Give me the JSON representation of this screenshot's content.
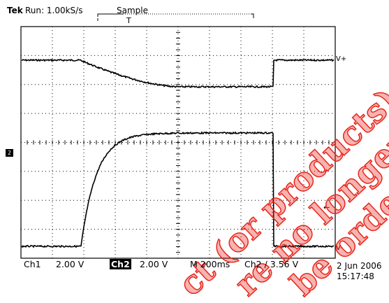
{
  "header": {
    "brand": "Tek",
    "run_state": "Run: 1.00kS/s",
    "acq_mode": "Sample",
    "trigger_bracket_label": "T"
  },
  "traces": {
    "upper_label": "V+",
    "lower_label": "V-"
  },
  "markers": {
    "ground_marker": "2",
    "arrow": "←"
  },
  "status": {
    "ch1_label": "Ch1",
    "ch1_scale": "2.00 V",
    "ch2_label": "Ch2",
    "ch2_scale": "2.00 V",
    "timebase": "M 200ms",
    "trigger": "Ch2 ∕  3.56 V",
    "date": "2 Jun 2006",
    "time": "15:17:48"
  },
  "watermark": {
    "lines": [
      "ct (or products) m",
      "re no longer",
      "be order"
    ],
    "color": "#e8261c"
  }
}
